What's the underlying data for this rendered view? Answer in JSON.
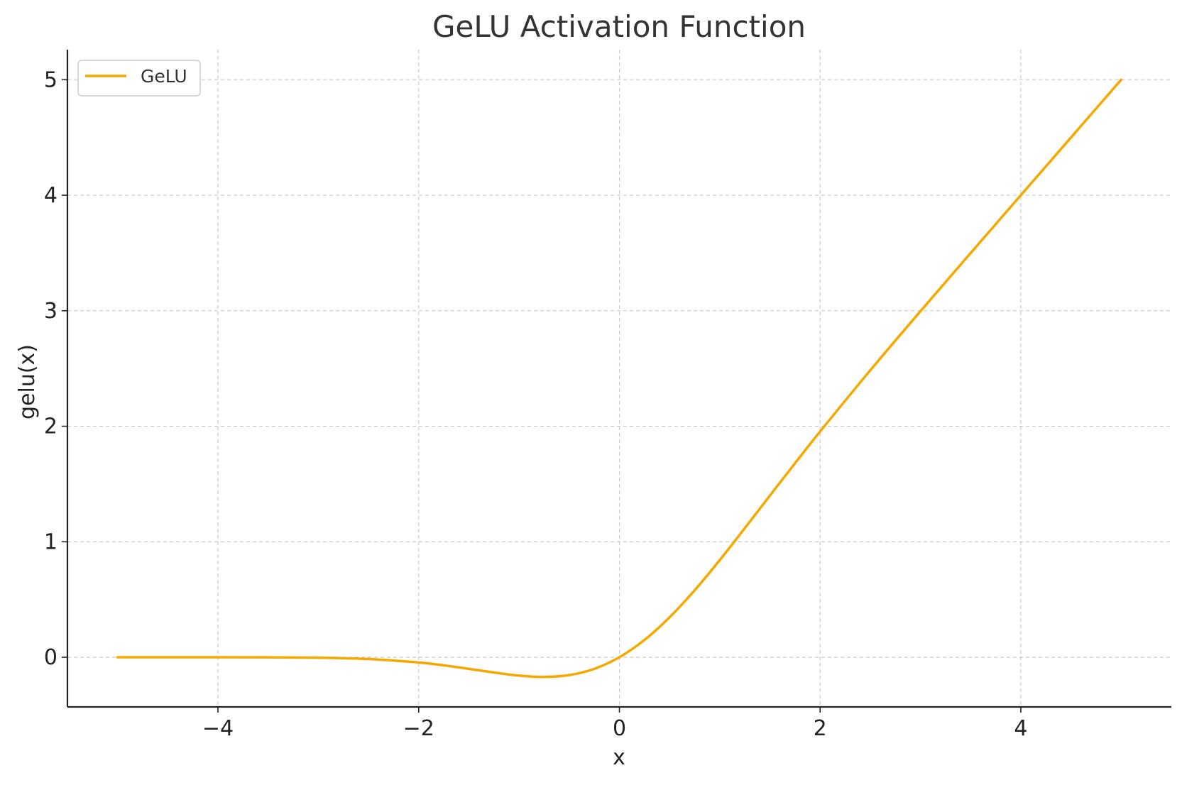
{
  "chart_data": {
    "type": "line",
    "title": "GeLU Activation Function",
    "xlabel": "x",
    "ylabel": "gelu(x)",
    "xlim": [
      -5.5,
      5.5
    ],
    "ylim": [
      -0.43,
      5.26
    ],
    "x_ticks": [
      -4,
      -2,
      0,
      2,
      4
    ],
    "y_ticks": [
      0,
      1,
      2,
      3,
      4,
      5
    ],
    "x_tick_labels": [
      "−4",
      "−2",
      "0",
      "2",
      "4"
    ],
    "y_tick_labels": [
      "0",
      "1",
      "2",
      "3",
      "4",
      "5"
    ],
    "grid": true,
    "legend_position": "upper-left",
    "series": [
      {
        "name": "GeLU",
        "color": "#f5a800",
        "x": [
          -5,
          -4.5,
          -4,
          -3.5,
          -3,
          -2.5,
          -2,
          -1.75,
          -1.5,
          -1.25,
          -1,
          -0.75,
          -0.5,
          -0.25,
          0,
          0.25,
          0.5,
          0.75,
          1,
          1.25,
          1.5,
          1.75,
          2,
          2.5,
          3,
          3.5,
          4,
          4.5,
          5
        ],
        "y": [
          0,
          0,
          -0.0001,
          -0.0008,
          -0.004,
          -0.0155,
          -0.0455,
          -0.0702,
          -0.1002,
          -0.132,
          -0.1587,
          -0.17,
          -0.1543,
          -0.1003,
          0,
          0.1497,
          0.3457,
          0.58,
          0.8413,
          1.118,
          1.3998,
          1.6798,
          1.9545,
          2.4845,
          2.996,
          3.4992,
          3.9999,
          4.5,
          5
        ]
      }
    ]
  }
}
